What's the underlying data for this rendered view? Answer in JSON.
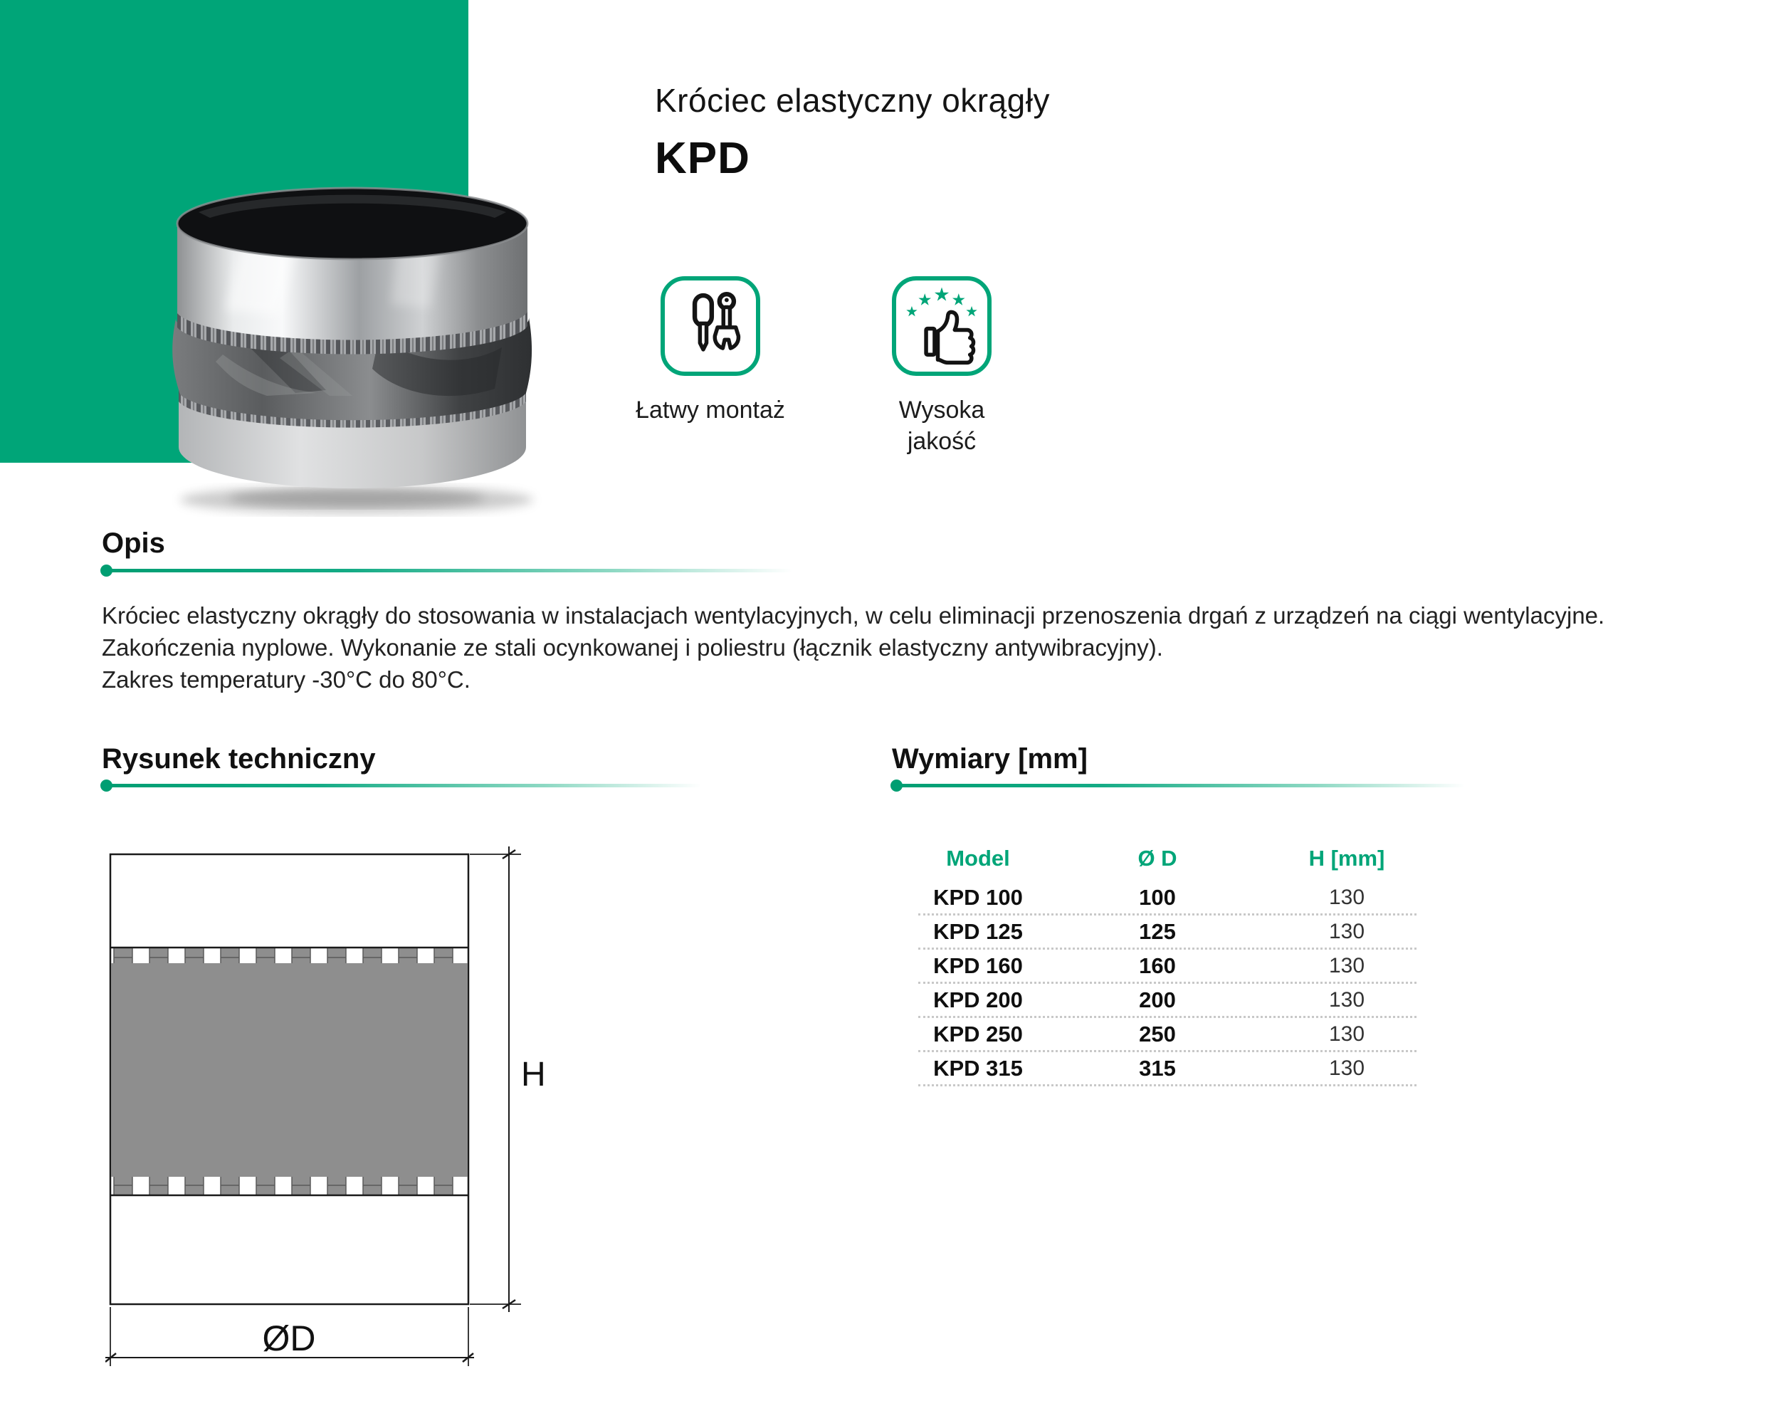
{
  "colors": {
    "accent": "#00a578",
    "fabric_gray": "#8e8e8e"
  },
  "header": {
    "title": "Króciec elastyczny okrągły",
    "model": "KPD"
  },
  "features": [
    {
      "icon": "tools-icon",
      "label": "Łatwy montaż"
    },
    {
      "icon": "thumbs-up-stars-icon",
      "label_line1": "Wysoka",
      "label_line2": "jakość"
    }
  ],
  "description_section": {
    "heading": "Opis",
    "lines": [
      "Króciec elastyczny okrągły do stosowania w instalacjach wentylacyjnych, w celu eliminacji przenoszenia drgań z urządzeń na ciągi wentylacyjne.",
      "Zakończenia nyplowe. Wykonanie ze stali ocynkowanej i poliestru (łącznik elastyczny antywibracyjny).",
      "Zakres temperatury -30°C do 80°C."
    ]
  },
  "drawing_section": {
    "heading": "Rysunek techniczny",
    "height_label": "H",
    "diameter_label": "ØD"
  },
  "dimensions_section": {
    "heading": "Wymiary [mm]",
    "table": {
      "headers": [
        "Model",
        "Ø D",
        "H [mm]"
      ],
      "rows": [
        [
          "KPD 100",
          "100",
          "130"
        ],
        [
          "KPD 125",
          "125",
          "130"
        ],
        [
          "KPD 160",
          "160",
          "130"
        ],
        [
          "KPD 200",
          "200",
          "130"
        ],
        [
          "KPD 250",
          "250",
          "130"
        ],
        [
          "KPD 315",
          "315",
          "130"
        ]
      ]
    }
  }
}
